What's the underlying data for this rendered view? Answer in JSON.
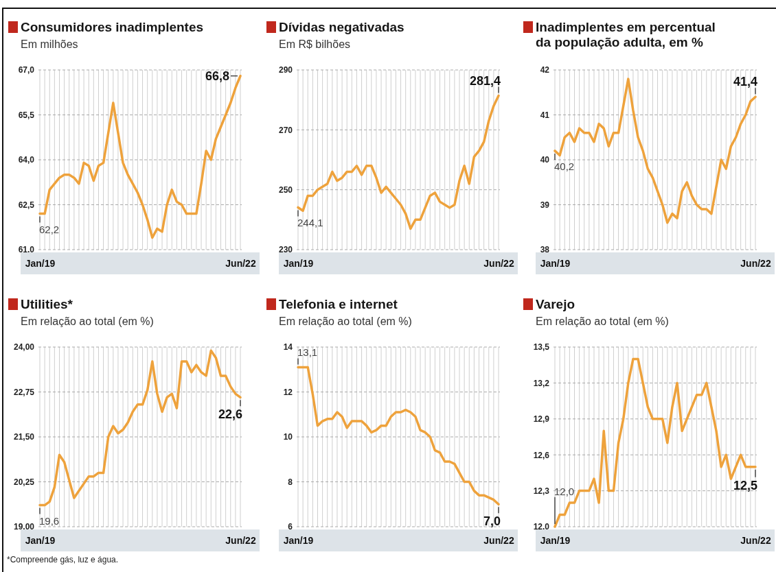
{
  "chart_data": [
    {
      "type": "line",
      "title": "Consumidores inadimplentes",
      "subtitle": "Em milhões",
      "categories": [
        "Jan/19",
        null,
        null,
        null,
        null,
        null,
        null,
        null,
        null,
        null,
        null,
        null,
        null,
        null,
        null,
        null,
        null,
        null,
        null,
        null,
        null,
        null,
        null,
        null,
        null,
        null,
        null,
        null,
        null,
        null,
        null,
        null,
        null,
        null,
        null,
        null,
        null,
        null,
        null,
        null,
        null,
        "Jun/22"
      ],
      "color": "#eea23c",
      "values": [
        62.2,
        62.2,
        63.0,
        63.2,
        63.4,
        63.5,
        63.5,
        63.4,
        63.2,
        63.9,
        63.8,
        63.3,
        63.8,
        63.9,
        64.9,
        65.9,
        64.9,
        63.9,
        63.5,
        63.2,
        62.9,
        62.5,
        62.0,
        61.4,
        61.7,
        61.6,
        62.5,
        63.0,
        62.6,
        62.5,
        62.2,
        62.2,
        62.2,
        63.2,
        64.3,
        64.0,
        64.7,
        65.1,
        65.5,
        65.9,
        66.4,
        66.8
      ],
      "value_labels": [
        "62,2",
        null,
        null,
        null,
        null,
        null,
        null,
        null,
        null,
        null,
        null,
        null,
        null,
        null,
        null,
        null,
        null,
        null,
        null,
        null,
        null,
        null,
        null,
        null,
        null,
        null,
        null,
        null,
        null,
        null,
        null,
        null,
        null,
        null,
        null,
        null,
        null,
        null,
        null,
        null,
        null,
        "66,8"
      ],
      "ylim": [
        61,
        67
      ],
      "yticks": [
        {
          "value": 61,
          "label": "61,0"
        },
        {
          "value": 62.5,
          "label": "62,5"
        },
        {
          "value": 64,
          "label": "64,0"
        },
        {
          "value": 65.5,
          "label": "65,5"
        },
        {
          "value": 67,
          "label": "67,0"
        }
      ],
      "grid": true
    },
    {
      "type": "line",
      "title": "Dívidas negativadas",
      "subtitle": "Em R$ bilhões",
      "categories": [
        "Jan/19",
        null,
        null,
        null,
        null,
        null,
        null,
        null,
        null,
        null,
        null,
        null,
        null,
        null,
        null,
        null,
        null,
        null,
        null,
        null,
        null,
        null,
        null,
        null,
        null,
        null,
        null,
        null,
        null,
        null,
        null,
        null,
        null,
        null,
        null,
        null,
        null,
        null,
        null,
        null,
        null,
        "Jun/22"
      ],
      "color": "#eea23c",
      "values": [
        244.1,
        243,
        248,
        248,
        250,
        251,
        252,
        256,
        253,
        254,
        256,
        256,
        258,
        255,
        258,
        258,
        254,
        249,
        251,
        249,
        247,
        245,
        242,
        237,
        240,
        240,
        244,
        248,
        249,
        246,
        245,
        244,
        245,
        253,
        258,
        252,
        261,
        263,
        266,
        273,
        278,
        281.4
      ],
      "value_labels": [
        "244,1",
        null,
        null,
        null,
        null,
        null,
        null,
        null,
        null,
        null,
        null,
        null,
        null,
        null,
        null,
        null,
        null,
        null,
        null,
        null,
        null,
        null,
        null,
        null,
        null,
        null,
        null,
        null,
        null,
        null,
        null,
        null,
        null,
        null,
        null,
        null,
        null,
        null,
        null,
        null,
        null,
        "281,4"
      ],
      "ylim": [
        230,
        290
      ],
      "yticks": [
        230,
        250,
        270,
        290
      ],
      "grid": true
    },
    {
      "type": "line",
      "title": "Inadimplentes em percentual da população adulta, em %",
      "categories": [
        "Jan/19",
        null,
        null,
        null,
        null,
        null,
        null,
        null,
        null,
        null,
        null,
        null,
        null,
        null,
        null,
        null,
        null,
        null,
        null,
        null,
        null,
        null,
        null,
        null,
        null,
        null,
        null,
        null,
        null,
        null,
        null,
        null,
        null,
        null,
        null,
        null,
        null,
        null,
        null,
        null,
        null,
        "Jun/22"
      ],
      "color": "#eea23c",
      "values": [
        40.2,
        40.1,
        40.5,
        40.6,
        40.4,
        40.7,
        40.6,
        40.6,
        40.4,
        40.8,
        40.7,
        40.3,
        40.6,
        40.6,
        41.2,
        41.8,
        41.1,
        40.5,
        40.2,
        39.8,
        39.6,
        39.3,
        39.0,
        38.6,
        38.8,
        38.7,
        39.3,
        39.5,
        39.2,
        39.0,
        38.9,
        38.9,
        38.8,
        39.4,
        40.0,
        39.8,
        40.3,
        40.5,
        40.8,
        41.0,
        41.3,
        41.4
      ],
      "value_labels": [
        "40,2",
        null,
        null,
        null,
        null,
        null,
        null,
        null,
        null,
        null,
        null,
        null,
        null,
        null,
        null,
        null,
        null,
        null,
        null,
        null,
        null,
        null,
        null,
        null,
        null,
        null,
        null,
        null,
        null,
        null,
        null,
        null,
        null,
        null,
        null,
        null,
        null,
        null,
        null,
        null,
        null,
        "41,4"
      ],
      "ylim": [
        38,
        42
      ],
      "yticks": [
        38,
        39,
        40,
        41,
        42
      ],
      "grid": true
    },
    {
      "type": "line",
      "title": "Utilities*",
      "subtitle": "Em relação ao total (em %)",
      "categories": [
        "Jan/19",
        null,
        null,
        null,
        null,
        null,
        null,
        null,
        null,
        null,
        null,
        null,
        null,
        null,
        null,
        null,
        null,
        null,
        null,
        null,
        null,
        null,
        null,
        null,
        null,
        null,
        null,
        null,
        null,
        null,
        null,
        null,
        null,
        null,
        null,
        null,
        null,
        null,
        null,
        null,
        null,
        "Jun/22"
      ],
      "color": "#eea23c",
      "values": [
        19.6,
        19.6,
        19.7,
        20.1,
        21.0,
        20.8,
        20.3,
        19.8,
        20.0,
        20.2,
        20.4,
        20.4,
        20.5,
        20.5,
        21.5,
        21.8,
        21.6,
        21.7,
        21.9,
        22.2,
        22.4,
        22.4,
        22.8,
        23.6,
        22.7,
        22.2,
        22.6,
        22.7,
        22.3,
        23.6,
        23.6,
        23.3,
        23.5,
        23.3,
        23.2,
        23.9,
        23.7,
        23.2,
        23.2,
        22.9,
        22.7,
        22.6
      ],
      "value_labels": [
        "19,6",
        null,
        null,
        null,
        null,
        null,
        null,
        null,
        null,
        null,
        null,
        null,
        null,
        null,
        null,
        null,
        null,
        null,
        null,
        null,
        null,
        null,
        null,
        null,
        null,
        null,
        null,
        null,
        null,
        null,
        null,
        null,
        null,
        null,
        null,
        null,
        null,
        null,
        null,
        null,
        null,
        "22,6"
      ],
      "ylim": [
        19,
        24
      ],
      "yticks": [
        {
          "value": 19,
          "label": "19,00"
        },
        {
          "value": 20.25,
          "label": "20,25"
        },
        {
          "value": 21.5,
          "label": "21,50"
        },
        {
          "value": 22.75,
          "label": "22,75"
        },
        {
          "value": 24,
          "label": "24,00"
        }
      ],
      "grid": true,
      "annotations": [
        "*Compreende gás, luz e água."
      ]
    },
    {
      "type": "line",
      "title": "Telefonia e internet",
      "subtitle": "Em relação ao total (em %)",
      "categories": [
        "Jan/19",
        null,
        null,
        null,
        null,
        null,
        null,
        null,
        null,
        null,
        null,
        null,
        null,
        null,
        null,
        null,
        null,
        null,
        null,
        null,
        null,
        null,
        null,
        null,
        null,
        null,
        null,
        null,
        null,
        null,
        null,
        null,
        null,
        null,
        null,
        null,
        null,
        null,
        null,
        null,
        null,
        "Jun/22"
      ],
      "color": "#eea23c",
      "values": [
        13.1,
        13.1,
        13.1,
        11.9,
        10.5,
        10.7,
        10.8,
        10.8,
        11.1,
        10.9,
        10.4,
        10.7,
        10.7,
        10.7,
        10.5,
        10.2,
        10.3,
        10.5,
        10.5,
        10.9,
        11.1,
        11.1,
        11.2,
        11.1,
        10.9,
        10.3,
        10.2,
        10.0,
        9.4,
        9.3,
        8.9,
        8.9,
        8.8,
        8.4,
        8.0,
        8.0,
        7.6,
        7.4,
        7.4,
        7.3,
        7.2,
        7.0
      ],
      "value_labels": [
        "13,1",
        null,
        null,
        null,
        null,
        null,
        null,
        null,
        null,
        null,
        null,
        null,
        null,
        null,
        null,
        null,
        null,
        null,
        null,
        null,
        null,
        null,
        null,
        null,
        null,
        null,
        null,
        null,
        null,
        null,
        null,
        null,
        null,
        null,
        null,
        null,
        null,
        null,
        null,
        null,
        null,
        "7,0"
      ],
      "ylim": [
        6,
        14
      ],
      "yticks": [
        6,
        8,
        10,
        12,
        14
      ],
      "grid": true
    },
    {
      "type": "line",
      "title": "Varejo",
      "subtitle": "Em relação ao total (em %)",
      "categories": [
        "Jan/19",
        null,
        null,
        null,
        null,
        null,
        null,
        null,
        null,
        null,
        null,
        null,
        null,
        null,
        null,
        null,
        null,
        null,
        null,
        null,
        null,
        null,
        null,
        null,
        null,
        null,
        null,
        null,
        null,
        null,
        null,
        null,
        null,
        null,
        null,
        null,
        null,
        null,
        null,
        null,
        null,
        "Jun/22"
      ],
      "color": "#eea23c",
      "values": [
        12.0,
        12.1,
        12.1,
        12.2,
        12.2,
        12.3,
        12.3,
        12.3,
        12.4,
        12.2,
        12.8,
        12.3,
        12.3,
        12.7,
        12.9,
        13.2,
        13.4,
        13.4,
        13.2,
        13.0,
        12.9,
        12.9,
        12.9,
        12.7,
        13.0,
        13.2,
        12.8,
        12.9,
        13.0,
        13.1,
        13.1,
        13.2,
        13.0,
        12.8,
        12.5,
        12.6,
        12.4,
        12.5,
        12.6,
        12.5,
        12.5,
        12.5
      ],
      "value_labels": [
        "12,0",
        null,
        null,
        null,
        null,
        null,
        null,
        null,
        null,
        null,
        null,
        null,
        null,
        null,
        null,
        null,
        null,
        null,
        null,
        null,
        null,
        null,
        null,
        null,
        null,
        null,
        null,
        null,
        null,
        null,
        null,
        null,
        null,
        null,
        null,
        null,
        null,
        null,
        null,
        null,
        null,
        "12,5"
      ],
      "ylim": [
        12,
        13.5
      ],
      "yticks": [
        {
          "value": 12,
          "label": "12,0"
        },
        {
          "value": 12.3,
          "label": "12,3"
        },
        {
          "value": 12.6,
          "label": "12,6"
        },
        {
          "value": 12.9,
          "label": "12,9"
        },
        {
          "value": 13.2,
          "label": "13,2"
        },
        {
          "value": 13.5,
          "label": "13,5"
        }
      ],
      "grid": true
    }
  ]
}
